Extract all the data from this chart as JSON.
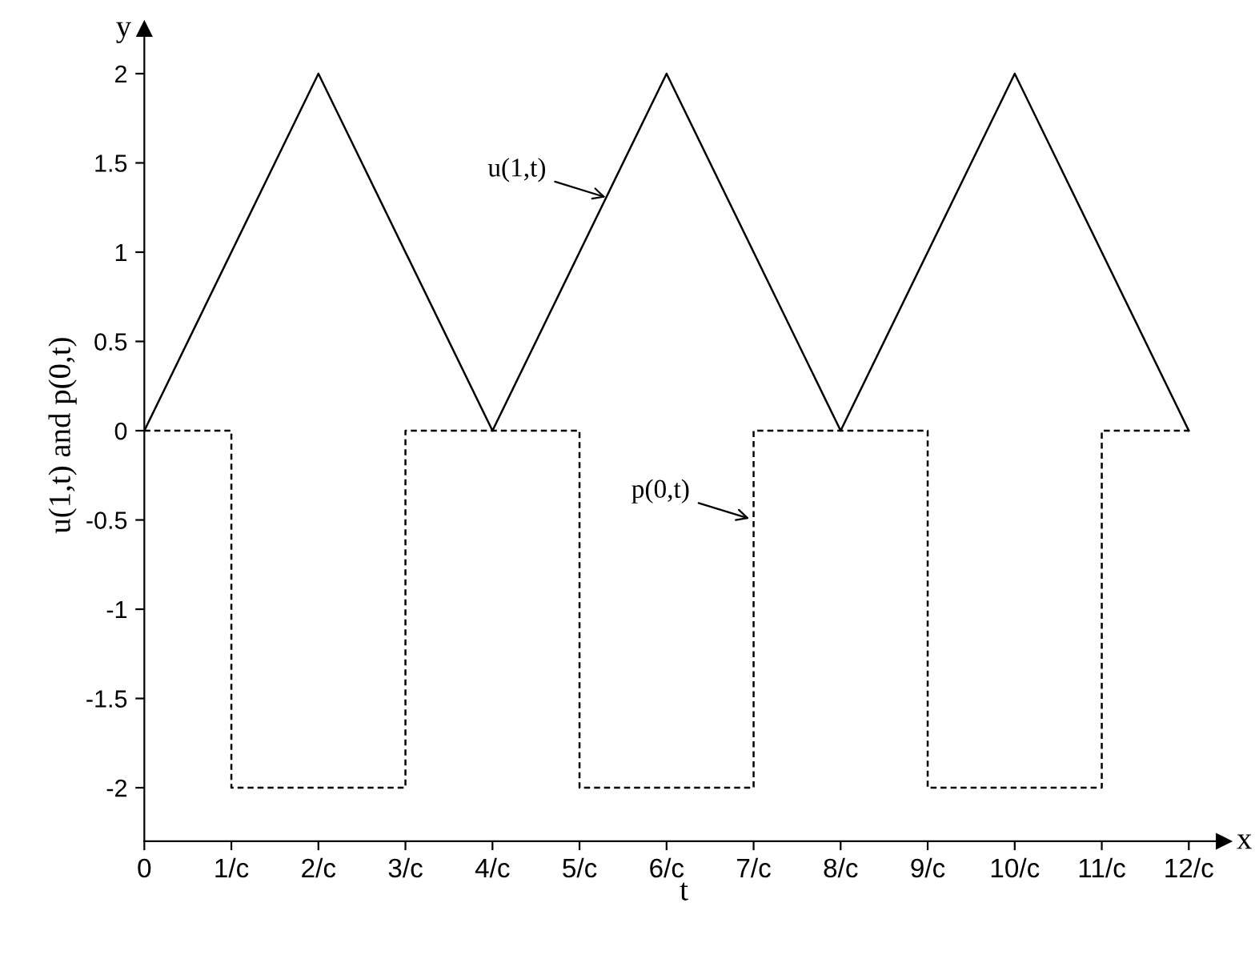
{
  "chart_data": {
    "type": "line",
    "xlabel": "t",
    "ylabel": "u(1,t) and p(0,t)",
    "xlim": [
      0,
      12.4
    ],
    "ylim": [
      -2.3,
      2.25
    ],
    "xticks": [
      0,
      {
        "value": 1,
        "label": "1/c"
      },
      {
        "value": 2,
        "label": "2/c"
      },
      {
        "value": 3,
        "label": "3/c"
      },
      {
        "value": 4,
        "label": "4/c"
      },
      {
        "value": 5,
        "label": "5/c"
      },
      {
        "value": 6,
        "label": "6/c"
      },
      {
        "value": 7,
        "label": "7/c"
      },
      {
        "value": 8,
        "label": "8/c"
      },
      {
        "value": 9,
        "label": "9/c"
      },
      {
        "value": 10,
        "label": "10/c"
      },
      {
        "value": 11,
        "label": "11/c"
      },
      {
        "value": 12,
        "label": "12/c"
      }
    ],
    "yticks": [
      {
        "value": -2,
        "label": "-2"
      },
      {
        "value": -1.5,
        "label": "-1.5"
      },
      {
        "value": -1,
        "label": "-1"
      },
      {
        "value": -0.5,
        "label": "-0.5"
      },
      0,
      {
        "value": 0.5,
        "label": "0.5"
      },
      1,
      {
        "value": 1.5,
        "label": "1.5"
      },
      2
    ],
    "grid": false,
    "legend": false,
    "series": [
      {
        "color": "#000000",
        "line_style": "solid",
        "x": [
          0,
          2,
          4,
          6,
          8,
          10,
          12
        ],
        "values": [
          0,
          2,
          0,
          2,
          0,
          2,
          0
        ]
      },
      {
        "type": "step",
        "color": "#000000",
        "line_style": "dashed",
        "x": [
          0,
          1,
          3,
          5,
          7,
          9,
          11,
          12
        ],
        "values": [
          0,
          -2,
          0,
          -2,
          0,
          -2,
          0,
          0
        ]
      }
    ],
    "annotations": [
      {
        "text": "u(1,t)",
        "x": 5.35,
        "y": 1.3
      },
      {
        "text": "p(0,t)",
        "x": 7.0,
        "y": -0.5
      },
      "x",
      "y"
    ]
  }
}
